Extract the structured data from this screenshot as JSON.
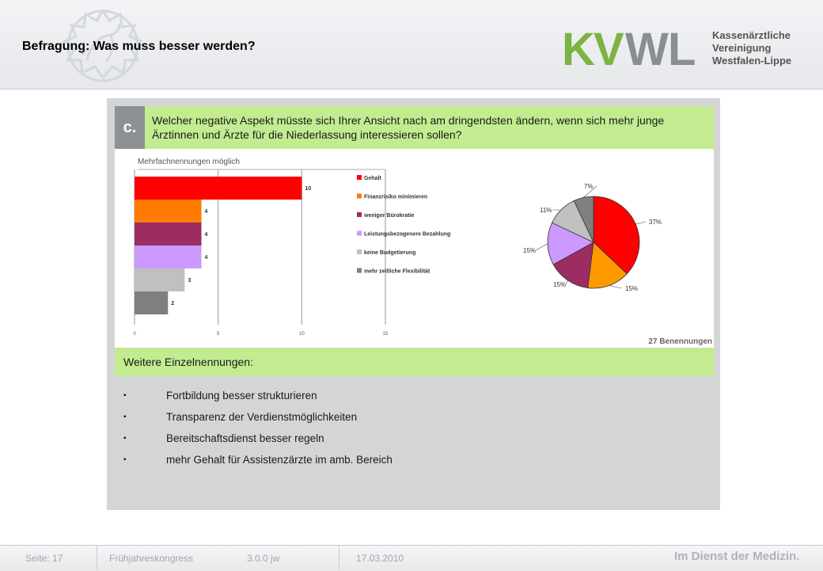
{
  "header": {
    "title": "Befragung: Was muss besser werden?",
    "logo_letters": [
      "K",
      "V",
      "W",
      "L"
    ],
    "logo_org": [
      "Kassenärztliche",
      "Vereinigung",
      "Westfalen-Lippe"
    ]
  },
  "question": {
    "letter": "c.",
    "text": "Welcher negative Aspekt müsste sich Ihrer Ansicht nach am dringendsten ändern, wenn sich mehr junge Ärztinnen und Ärzte für die Niederlassung interessieren sollen?"
  },
  "chart_data": [
    {
      "type": "bar",
      "orientation": "horizontal",
      "subtitle": "Mehrfachnennungen möglich",
      "categories": [
        "Gehalt",
        "Finanzrisiko minimieren",
        "weniger Bürokratie",
        "Leistungsbezogenere Bezahlung",
        "keine Budgetierung",
        "mehr zeitliche Flexibilität"
      ],
      "values": [
        10,
        4,
        4,
        4,
        3,
        2
      ],
      "value_labels": [
        "10",
        "4",
        "4",
        "4",
        "3",
        "2"
      ],
      "colors": [
        "#ff0000",
        "#ff7a00",
        "#9b2d63",
        "#cc99ff",
        "#c0c0c0",
        "#7f7f7f"
      ],
      "xlim": [
        0,
        15
      ],
      "xticks": [
        0,
        5,
        10,
        15
      ],
      "xtick_labels": [
        "0",
        "5",
        "10",
        "15"
      ],
      "grid": true,
      "legend": "right"
    },
    {
      "type": "pie",
      "values": [
        37,
        15,
        15,
        15,
        11,
        7
      ],
      "labels": [
        "37%",
        "15%",
        "15%",
        "15%",
        "11%",
        "7%"
      ],
      "colors": [
        "#ff0000",
        "#ff9900",
        "#9b2d63",
        "#cc99ff",
        "#c0c0c0",
        "#7f7f7f"
      ]
    }
  ],
  "count_label": "27 Benennungen",
  "further": {
    "label": "Weitere Einzelnennungen:",
    "bullet": "▪",
    "items": [
      "Fortbildung besser strukturieren",
      "Transparenz der Verdienstmöglichkeiten",
      "Bereitschaftsdienst besser regeln",
      "mehr Gehalt für Assistenzärzte im amb. Bereich"
    ]
  },
  "footer": {
    "page": "Seite: 17",
    "event": "Frühjahreskongress",
    "version": "3.0.0 jw",
    "date": "17.03.2010",
    "slogan": "Im Dienst der Medizin."
  },
  "colors": {
    "logo_green": "#7cb342",
    "logo_gray": "#8a8d91",
    "question_bar": "#c3eb90"
  }
}
